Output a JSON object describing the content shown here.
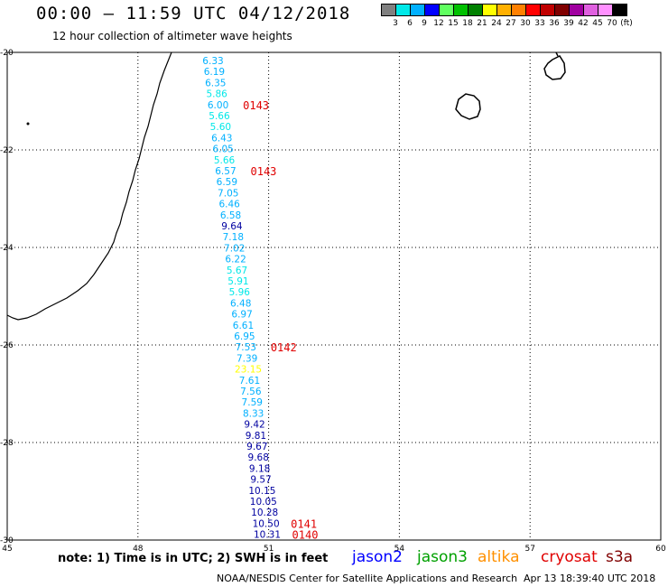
{
  "header": {
    "title": "00:00 — 11:59 UTC 04/12/2018",
    "subtitle": "12 hour collection of altimeter wave heights"
  },
  "legend": {
    "colors": [
      "#808080",
      "#00e8e8",
      "#00b0ff",
      "#0000ff",
      "#60ff60",
      "#00c000",
      "#008000",
      "#ffff00",
      "#ffb000",
      "#ff8000",
      "#ff0000",
      "#c00000",
      "#800000",
      "#a000a0",
      "#e060e0",
      "#ff90ff",
      "#000000"
    ],
    "labels": [
      "3",
      "6",
      "9",
      "12",
      "15",
      "18",
      "21",
      "24",
      "27",
      "30",
      "33",
      "36",
      "39",
      "42",
      "45",
      "70",
      "(ft)"
    ]
  },
  "map": {
    "lon_ticks": [
      "45",
      "48",
      "51",
      "54",
      "57",
      "60"
    ],
    "lat_ticks": [
      "-20",
      "-22",
      "-24",
      "-26",
      "-28",
      "-30"
    ],
    "lon_range": [
      45,
      60
    ],
    "lat_range": [
      -20,
      -30
    ]
  },
  "chart_data": {
    "type": "table",
    "wave_heights_ft": [
      {
        "value": "6.33",
        "color": "#00b0ff"
      },
      {
        "value": "6.19",
        "color": "#00b0ff"
      },
      {
        "value": "6.35",
        "color": "#00b0ff"
      },
      {
        "value": "5.86",
        "color": "#00e8e8"
      },
      {
        "value": "6.00",
        "color": "#00b0ff"
      },
      {
        "value": "5.66",
        "color": "#00e8e8"
      },
      {
        "value": "5.60",
        "color": "#00e8e8"
      },
      {
        "value": "6.43",
        "color": "#00b0ff"
      },
      {
        "value": "6.05",
        "color": "#00b0ff"
      },
      {
        "value": "5.66",
        "color": "#00e8e8"
      },
      {
        "value": "6.57",
        "color": "#00b0ff"
      },
      {
        "value": "6.59",
        "color": "#00b0ff"
      },
      {
        "value": "7.05",
        "color": "#00b0ff"
      },
      {
        "value": "6.46",
        "color": "#00b0ff"
      },
      {
        "value": "6.58",
        "color": "#00b0ff"
      },
      {
        "value": "9.64",
        "color": "#0000a0"
      },
      {
        "value": "7.18",
        "color": "#00b0ff"
      },
      {
        "value": "7.02",
        "color": "#00b0ff"
      },
      {
        "value": "6.22",
        "color": "#00b0ff"
      },
      {
        "value": "5.67",
        "color": "#00e8e8"
      },
      {
        "value": "5.91",
        "color": "#00e8e8"
      },
      {
        "value": "5.96",
        "color": "#00e8e8"
      },
      {
        "value": "6.48",
        "color": "#00b0ff"
      },
      {
        "value": "6.97",
        "color": "#00b0ff"
      },
      {
        "value": "6.61",
        "color": "#00b0ff"
      },
      {
        "value": "6.95",
        "color": "#00b0ff"
      },
      {
        "value": "7.53",
        "color": "#00b0ff"
      },
      {
        "value": "7.39",
        "color": "#00b0ff"
      },
      {
        "value": "23.15",
        "color": "#ffff00"
      },
      {
        "value": "7.61",
        "color": "#00b0ff"
      },
      {
        "value": "7.56",
        "color": "#00b0ff"
      },
      {
        "value": "7.59",
        "color": "#00b0ff"
      },
      {
        "value": "8.33",
        "color": "#00b0ff"
      },
      {
        "value": "9.42",
        "color": "#0000a0"
      },
      {
        "value": "9.81",
        "color": "#0000a0"
      },
      {
        "value": "9.67",
        "color": "#0000a0"
      },
      {
        "value": "9.68",
        "color": "#0000a0"
      },
      {
        "value": "9.18",
        "color": "#0000a0"
      },
      {
        "value": "9.57",
        "color": "#0000a0"
      },
      {
        "value": "10.15",
        "color": "#0000a0"
      },
      {
        "value": "10.05",
        "color": "#0000a0"
      },
      {
        "value": "10.28",
        "color": "#0000a0"
      },
      {
        "value": "10.50",
        "color": "#0000a0"
      },
      {
        "value": "10.31",
        "color": "#0000a0"
      }
    ],
    "time_labels": [
      {
        "text": "0143",
        "row": 4
      },
      {
        "text": "0143",
        "row": 10
      },
      {
        "text": "0142",
        "row": 26
      },
      {
        "text": "0141",
        "row": 42
      },
      {
        "text": "0140",
        "row": 43
      }
    ],
    "time_label_color": "#e00000"
  },
  "notes": {
    "text": "note: 1) Time is in UTC; 2) SWH is in feet"
  },
  "missions": [
    {
      "name": "jason2",
      "color": "#0000ff"
    },
    {
      "name": "jason3",
      "color": "#00a000"
    },
    {
      "name": "altika",
      "color": "#ff9000"
    },
    {
      "name": "cryosat",
      "color": "#e00000"
    },
    {
      "name": "s3a",
      "color": "#800000"
    }
  ],
  "footer": {
    "credit": "NOAA/NESDIS Center for Satellite Applications and Research",
    "timestamp": "Apr 13 18:39:40 UTC 2018"
  }
}
